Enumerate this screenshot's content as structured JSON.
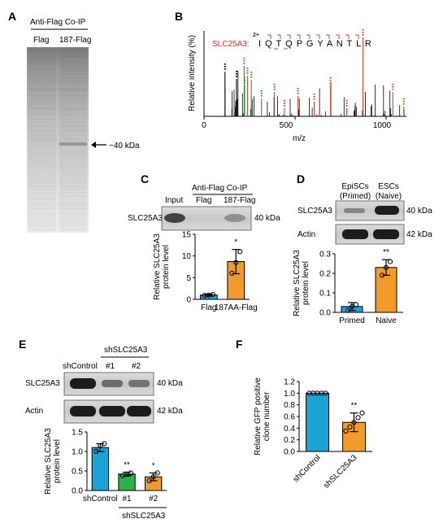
{
  "colors": {
    "blue": "#1aa3d4",
    "orange": "#f39a2b",
    "green": "#2bb34a",
    "red": "#e8312f",
    "ms_red": "#d1492b",
    "ms_green": "#229944",
    "ms_blue": "#2233bb"
  },
  "panelA": {
    "letter": "A",
    "header": "Anti-Flag Co-IP",
    "lanes": [
      "Flag",
      "187-Flag"
    ],
    "marker": "~40 kDa"
  },
  "panelB": {
    "letter": "B",
    "ylabel": "Relative intensity (%)",
    "xlabel": "m/z",
    "xticks": [
      "0",
      "500",
      "1000"
    ],
    "protein": "SLC25A3:",
    "charge": "2+",
    "sequence": "I Q T Q P G Y A N T L R"
  },
  "panelC": {
    "letter": "C",
    "header": "Anti-Flag Co-IP",
    "lanes": [
      "Input",
      "Flag",
      "187-Flag"
    ],
    "protein": "SLC25A3",
    "kda": "40 kDa",
    "sig": "*"
  },
  "panelD": {
    "letter": "D",
    "col1": [
      "EpiSCs",
      "(Primed)"
    ],
    "col2": [
      "ESCs",
      "(Naive)"
    ],
    "proteins": [
      "SLC25A3",
      "Actin"
    ],
    "kdas": [
      "40 kDa",
      "42 kDa"
    ],
    "sig": "**"
  },
  "panelE": {
    "letter": "E",
    "group_label": "shSLC25A3",
    "lanes": [
      "shControl",
      "#1",
      "#2"
    ],
    "proteins": [
      "SLC25A3",
      "Actin"
    ],
    "kdas": [
      "40 kDa",
      "42 kDa"
    ],
    "sigs": [
      "**",
      "*"
    ],
    "bottom_group": "shSLC25A3"
  },
  "panelF": {
    "letter": "F",
    "sig": "**"
  },
  "chart_data": [
    {
      "type": "bar",
      "panel": "C",
      "categories": [
        "Flag",
        "187AA-Flag"
      ],
      "values": [
        1.0,
        8.7
      ],
      "errors": [
        0.2,
        2.8
      ],
      "points": [
        [
          0.9,
          1.0,
          1.1
        ],
        [
          6.0,
          8.5,
          11.0
        ]
      ],
      "ylabel": "Relative SLC25A3 protein level",
      "ylim": [
        0,
        15
      ],
      "yticks": [
        "0",
        "5",
        "10",
        "15"
      ]
    },
    {
      "type": "bar",
      "panel": "D",
      "categories": [
        "Primed",
        "Naive"
      ],
      "values": [
        0.03,
        0.23
      ],
      "errors": [
        0.02,
        0.04
      ],
      "points": [
        [
          0.01,
          0.03,
          0.04
        ],
        [
          0.19,
          0.23,
          0.26
        ]
      ],
      "ylabel": "Relative SLC25A3 protein level",
      "ylim": [
        0,
        0.3
      ],
      "yticks": [
        "0.0",
        "0.1",
        "0.2",
        "0.3"
      ]
    },
    {
      "type": "bar",
      "panel": "E",
      "categories": [
        "shControl",
        "#1",
        "#2"
      ],
      "values": [
        1.1,
        0.42,
        0.35
      ],
      "errors": [
        0.1,
        0.05,
        0.1
      ],
      "points": [
        [
          1.0,
          1.15,
          1.2
        ],
        [
          0.38,
          0.42,
          0.45
        ],
        [
          0.25,
          0.35,
          0.45
        ]
      ],
      "ylabel": "Relative SLC25A3 protein level",
      "ylim": [
        0,
        1.5
      ],
      "yticks": [
        "0.0",
        "0.5",
        "1.0",
        "1.5"
      ]
    },
    {
      "type": "bar",
      "panel": "F",
      "categories": [
        "shControl",
        "shSLC25A3"
      ],
      "values": [
        1.0,
        0.5
      ],
      "errors": [
        0.0,
        0.16
      ],
      "points": [
        [
          1.0,
          1.0,
          1.0,
          1.0,
          1.0
        ],
        [
          0.35,
          0.42,
          0.5,
          0.58,
          0.66
        ]
      ],
      "ylabel": "Relative GFP positive clone number",
      "ylim": [
        0,
        1.2
      ],
      "yticks": [
        "0.0",
        "0.2",
        "0.4",
        "0.6",
        "0.8",
        "1.0",
        "1.2"
      ]
    }
  ]
}
